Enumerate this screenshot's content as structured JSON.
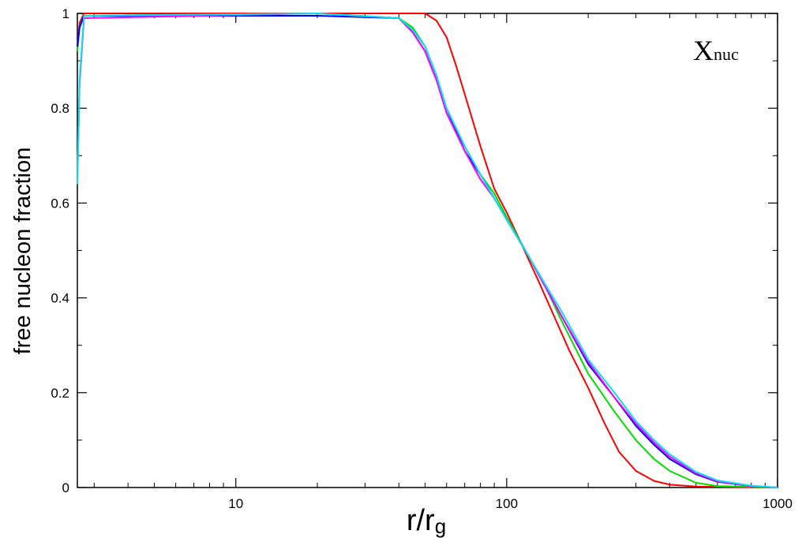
{
  "chart_data": {
    "type": "line",
    "xscale": "log",
    "xlim": [
      2.6,
      1000
    ],
    "ylim": [
      0,
      1
    ],
    "xlabel_main": "r/r",
    "xlabel_sub": "g",
    "ylabel": "free nucleon fraction",
    "annotation_main": "X",
    "annotation_sub": "nuc",
    "xticks": [
      {
        "value": 10,
        "label": "10"
      },
      {
        "value": 100,
        "label": "100"
      },
      {
        "value": 1000,
        "label": "1000"
      }
    ],
    "yticks": [
      {
        "value": 0,
        "label": "0"
      },
      {
        "value": 0.2,
        "label": "0.2"
      },
      {
        "value": 0.4,
        "label": "0.4"
      },
      {
        "value": 0.6,
        "label": "0.6"
      },
      {
        "value": 0.8,
        "label": "0.8"
      },
      {
        "value": 1,
        "label": "1"
      }
    ],
    "grid": false,
    "series": [
      {
        "color": "#ff0000",
        "points": [
          [
            2.6,
            0.93
          ],
          [
            2.65,
            0.98
          ],
          [
            2.75,
            1.0
          ],
          [
            20,
            1.0
          ],
          [
            50,
            1.0
          ],
          [
            55,
            0.985
          ],
          [
            60,
            0.95
          ],
          [
            65,
            0.89
          ],
          [
            70,
            0.83
          ],
          [
            80,
            0.72
          ],
          [
            90,
            0.63
          ],
          [
            100,
            0.58
          ],
          [
            110,
            0.53
          ],
          [
            130,
            0.44
          ],
          [
            150,
            0.36
          ],
          [
            170,
            0.29
          ],
          [
            200,
            0.21
          ],
          [
            230,
            0.135
          ],
          [
            260,
            0.075
          ],
          [
            300,
            0.035
          ],
          [
            350,
            0.014
          ],
          [
            400,
            0.006
          ],
          [
            500,
            0.002
          ],
          [
            1000,
            0.0
          ]
        ]
      },
      {
        "color": "#00dd00",
        "points": [
          [
            2.6,
            0.92
          ],
          [
            2.65,
            0.97
          ],
          [
            2.75,
            0.995
          ],
          [
            20,
            1.0
          ],
          [
            40,
            0.99
          ],
          [
            45,
            0.97
          ],
          [
            50,
            0.93
          ],
          [
            55,
            0.87
          ],
          [
            60,
            0.8
          ],
          [
            70,
            0.72
          ],
          [
            80,
            0.66
          ],
          [
            90,
            0.62
          ],
          [
            100,
            0.57
          ],
          [
            120,
            0.49
          ],
          [
            140,
            0.42
          ],
          [
            160,
            0.35
          ],
          [
            200,
            0.24
          ],
          [
            250,
            0.16
          ],
          [
            300,
            0.1
          ],
          [
            350,
            0.06
          ],
          [
            400,
            0.035
          ],
          [
            500,
            0.01
          ],
          [
            600,
            0.003
          ],
          [
            1000,
            0.0
          ]
        ]
      },
      {
        "color": "#0000ff",
        "points": [
          [
            2.6,
            0.93
          ],
          [
            2.65,
            0.97
          ],
          [
            2.75,
            0.995
          ],
          [
            20,
            0.995
          ],
          [
            40,
            0.99
          ],
          [
            45,
            0.96
          ],
          [
            50,
            0.92
          ],
          [
            55,
            0.86
          ],
          [
            60,
            0.8
          ],
          [
            70,
            0.71
          ],
          [
            80,
            0.66
          ],
          [
            90,
            0.61
          ],
          [
            100,
            0.565
          ],
          [
            120,
            0.49
          ],
          [
            140,
            0.42
          ],
          [
            160,
            0.36
          ],
          [
            200,
            0.26
          ],
          [
            250,
            0.19
          ],
          [
            300,
            0.13
          ],
          [
            350,
            0.09
          ],
          [
            400,
            0.06
          ],
          [
            500,
            0.028
          ],
          [
            600,
            0.012
          ],
          [
            800,
            0.003
          ],
          [
            1000,
            0.0
          ]
        ]
      },
      {
        "color": "#ff00ff",
        "points": [
          [
            2.6,
            0.64
          ],
          [
            2.65,
            0.85
          ],
          [
            2.75,
            0.99
          ],
          [
            20,
            1.0
          ],
          [
            40,
            0.99
          ],
          [
            45,
            0.96
          ],
          [
            50,
            0.92
          ],
          [
            55,
            0.86
          ],
          [
            60,
            0.79
          ],
          [
            70,
            0.71
          ],
          [
            80,
            0.65
          ],
          [
            90,
            0.61
          ],
          [
            100,
            0.565
          ],
          [
            120,
            0.49
          ],
          [
            140,
            0.42
          ],
          [
            160,
            0.36
          ],
          [
            200,
            0.265
          ],
          [
            250,
            0.19
          ],
          [
            300,
            0.135
          ],
          [
            350,
            0.095
          ],
          [
            400,
            0.065
          ],
          [
            500,
            0.03
          ],
          [
            600,
            0.013
          ],
          [
            800,
            0.003
          ],
          [
            1000,
            0.0
          ]
        ]
      },
      {
        "color": "#00e5ee",
        "points": [
          [
            2.6,
            0.64
          ],
          [
            2.65,
            0.86
          ],
          [
            2.75,
            0.995
          ],
          [
            20,
            1.0
          ],
          [
            40,
            0.99
          ],
          [
            45,
            0.965
          ],
          [
            50,
            0.93
          ],
          [
            55,
            0.87
          ],
          [
            60,
            0.8
          ],
          [
            70,
            0.72
          ],
          [
            80,
            0.66
          ],
          [
            90,
            0.61
          ],
          [
            100,
            0.565
          ],
          [
            120,
            0.49
          ],
          [
            140,
            0.425
          ],
          [
            160,
            0.37
          ],
          [
            200,
            0.27
          ],
          [
            250,
            0.2
          ],
          [
            300,
            0.14
          ],
          [
            350,
            0.1
          ],
          [
            400,
            0.07
          ],
          [
            500,
            0.033
          ],
          [
            600,
            0.015
          ],
          [
            800,
            0.004
          ],
          [
            1000,
            0.0
          ]
        ]
      }
    ]
  }
}
